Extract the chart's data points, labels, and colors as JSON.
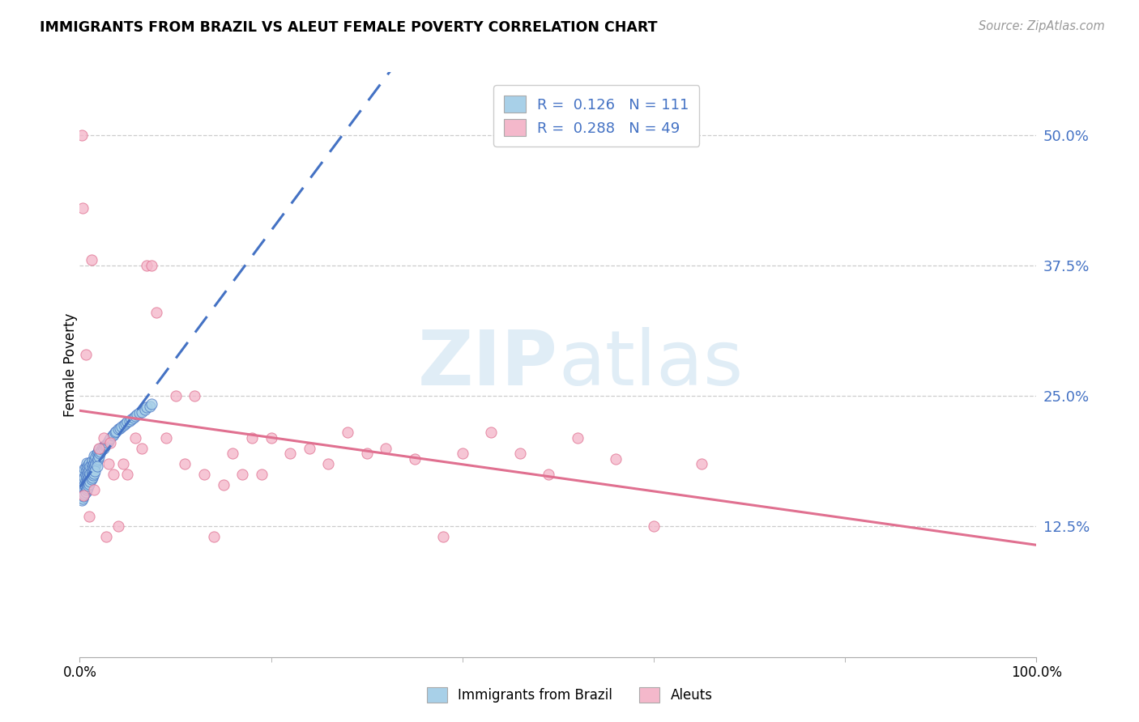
{
  "title": "IMMIGRANTS FROM BRAZIL VS ALEUT FEMALE POVERTY CORRELATION CHART",
  "source": "Source: ZipAtlas.com",
  "ylabel": "Female Poverty",
  "ytick_values": [
    0.125,
    0.25,
    0.375,
    0.5
  ],
  "ytick_labels": [
    "12.5%",
    "25.0%",
    "37.5%",
    "50.0%"
  ],
  "xtick_values": [
    0.0,
    1.0
  ],
  "xtick_labels": [
    "0.0%",
    "100.0%"
  ],
  "xlim": [
    0.0,
    1.0
  ],
  "ylim": [
    0.0,
    0.56
  ],
  "blue_face": "#A8D0E8",
  "blue_edge": "#4472C4",
  "pink_face": "#F4B8CB",
  "pink_edge": "#E07090",
  "trend_blue_color": "#4472C4",
  "trend_pink_color": "#E07090",
  "grid_color": "#CCCCCC",
  "watermark_color": "#C8DFF0",
  "label1": "Immigrants from Brazil",
  "label2": "Aleuts",
  "legend_r1_text": "R =  0.126   N = 111",
  "legend_r2_text": "R =  0.288   N = 49",
  "ytick_color": "#4472C4",
  "brazil_x": [
    0.001,
    0.002,
    0.002,
    0.002,
    0.003,
    0.003,
    0.003,
    0.003,
    0.004,
    0.004,
    0.004,
    0.004,
    0.005,
    0.005,
    0.005,
    0.005,
    0.006,
    0.006,
    0.006,
    0.006,
    0.006,
    0.007,
    0.007,
    0.007,
    0.007,
    0.007,
    0.008,
    0.008,
    0.008,
    0.008,
    0.009,
    0.009,
    0.009,
    0.009,
    0.01,
    0.01,
    0.01,
    0.01,
    0.011,
    0.011,
    0.011,
    0.012,
    0.012,
    0.012,
    0.013,
    0.013,
    0.013,
    0.014,
    0.014,
    0.015,
    0.015,
    0.015,
    0.016,
    0.016,
    0.017,
    0.017,
    0.018,
    0.018,
    0.019,
    0.019,
    0.02,
    0.02,
    0.021,
    0.022,
    0.023,
    0.024,
    0.025,
    0.026,
    0.027,
    0.028,
    0.029,
    0.03,
    0.031,
    0.032,
    0.034,
    0.035,
    0.037,
    0.038,
    0.04,
    0.042,
    0.044,
    0.046,
    0.048,
    0.05,
    0.052,
    0.054,
    0.056,
    0.058,
    0.06,
    0.062,
    0.065,
    0.068,
    0.07,
    0.073,
    0.075,
    0.002,
    0.003,
    0.004,
    0.005,
    0.006,
    0.007,
    0.008,
    0.009,
    0.01,
    0.011,
    0.012,
    0.013,
    0.014,
    0.015,
    0.016,
    0.018
  ],
  "brazil_y": [
    0.155,
    0.16,
    0.165,
    0.17,
    0.158,
    0.162,
    0.168,
    0.175,
    0.155,
    0.163,
    0.17,
    0.178,
    0.16,
    0.165,
    0.172,
    0.18,
    0.158,
    0.163,
    0.169,
    0.175,
    0.182,
    0.16,
    0.167,
    0.173,
    0.179,
    0.186,
    0.163,
    0.169,
    0.175,
    0.182,
    0.165,
    0.171,
    0.177,
    0.184,
    0.167,
    0.173,
    0.179,
    0.186,
    0.17,
    0.176,
    0.183,
    0.172,
    0.178,
    0.185,
    0.175,
    0.181,
    0.188,
    0.178,
    0.184,
    0.18,
    0.186,
    0.193,
    0.183,
    0.189,
    0.185,
    0.192,
    0.188,
    0.195,
    0.19,
    0.197,
    0.192,
    0.199,
    0.195,
    0.197,
    0.199,
    0.201,
    0.2,
    0.202,
    0.203,
    0.204,
    0.205,
    0.207,
    0.208,
    0.21,
    0.212,
    0.213,
    0.215,
    0.216,
    0.218,
    0.219,
    0.221,
    0.222,
    0.224,
    0.225,
    0.226,
    0.228,
    0.229,
    0.231,
    0.232,
    0.234,
    0.235,
    0.237,
    0.239,
    0.24,
    0.242,
    0.15,
    0.152,
    0.154,
    0.156,
    0.158,
    0.16,
    0.162,
    0.164,
    0.166,
    0.168,
    0.17,
    0.172,
    0.174,
    0.176,
    0.178,
    0.183
  ],
  "aleut_x": [
    0.002,
    0.003,
    0.004,
    0.006,
    0.01,
    0.012,
    0.015,
    0.02,
    0.025,
    0.028,
    0.03,
    0.032,
    0.035,
    0.04,
    0.045,
    0.05,
    0.058,
    0.065,
    0.07,
    0.075,
    0.08,
    0.09,
    0.1,
    0.11,
    0.12,
    0.13,
    0.14,
    0.15,
    0.16,
    0.17,
    0.18,
    0.19,
    0.2,
    0.22,
    0.24,
    0.26,
    0.28,
    0.3,
    0.32,
    0.35,
    0.38,
    0.4,
    0.43,
    0.46,
    0.49,
    0.52,
    0.56,
    0.6,
    0.65
  ],
  "aleut_y": [
    0.5,
    0.43,
    0.155,
    0.29,
    0.135,
    0.38,
    0.16,
    0.2,
    0.21,
    0.115,
    0.185,
    0.205,
    0.175,
    0.125,
    0.185,
    0.175,
    0.21,
    0.2,
    0.375,
    0.375,
    0.33,
    0.21,
    0.25,
    0.185,
    0.25,
    0.175,
    0.115,
    0.165,
    0.195,
    0.175,
    0.21,
    0.175,
    0.21,
    0.195,
    0.2,
    0.185,
    0.215,
    0.195,
    0.2,
    0.19,
    0.115,
    0.195,
    0.215,
    0.195,
    0.175,
    0.21,
    0.19,
    0.125,
    0.185
  ]
}
